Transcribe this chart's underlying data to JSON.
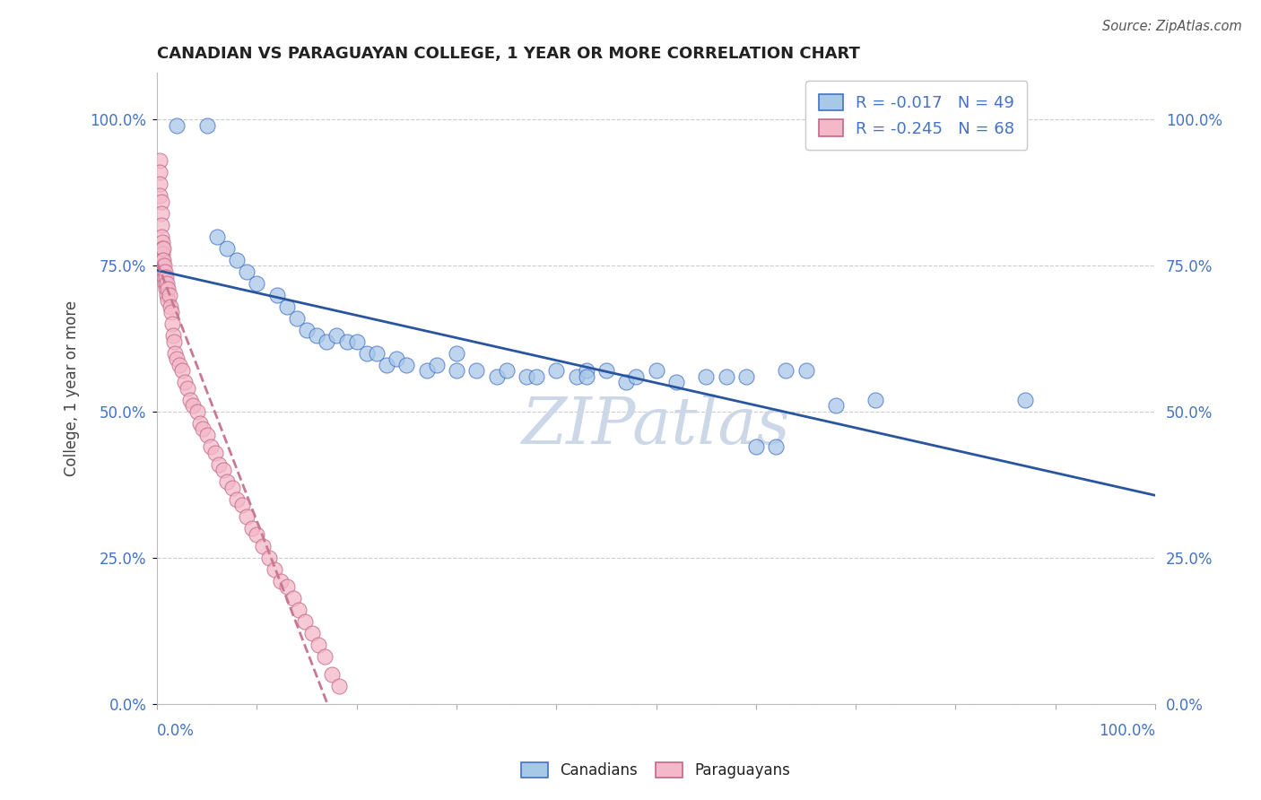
{
  "title": "CANADIAN VS PARAGUAYAN COLLEGE, 1 YEAR OR MORE CORRELATION CHART",
  "source": "Source: ZipAtlas.com",
  "ylabel": "College, 1 year or more",
  "ytick_labels": [
    "0.0%",
    "25.0%",
    "50.0%",
    "75.0%",
    "100.0%"
  ],
  "ytick_values": [
    0.0,
    0.25,
    0.5,
    0.75,
    1.0
  ],
  "xtick_labels": [
    "0.0%",
    "100.0%"
  ],
  "canadian_color": "#a8c8e8",
  "canadian_edge": "#4472c4",
  "paraguayan_color": "#f4b8c8",
  "paraguayan_edge": "#c06888",
  "trend_canadian_color": "#2855a0",
  "trend_paraguayan_color": "#c87890",
  "watermark_color": "#ccd8e8",
  "title_color": "#222222",
  "axis_label_color": "#4472c4",
  "R_canadian": -0.017,
  "R_paraguayan": -0.245,
  "N_canadian": 49,
  "N_paraguayan": 68,
  "canadians_x": [
    0.02,
    0.05,
    0.06,
    0.07,
    0.08,
    0.09,
    0.1,
    0.12,
    0.13,
    0.14,
    0.15,
    0.16,
    0.17,
    0.18,
    0.19,
    0.2,
    0.21,
    0.22,
    0.23,
    0.24,
    0.25,
    0.27,
    0.28,
    0.3,
    0.32,
    0.34,
    0.35,
    0.37,
    0.38,
    0.4,
    0.42,
    0.43,
    0.43,
    0.45,
    0.47,
    0.48,
    0.5,
    0.52,
    0.55,
    0.57,
    0.59,
    0.6,
    0.62,
    0.63,
    0.65,
    0.68,
    0.72,
    0.87,
    0.3
  ],
  "canadians_y": [
    0.99,
    0.99,
    0.8,
    0.78,
    0.76,
    0.74,
    0.72,
    0.7,
    0.68,
    0.66,
    0.64,
    0.63,
    0.62,
    0.63,
    0.62,
    0.62,
    0.6,
    0.6,
    0.58,
    0.59,
    0.58,
    0.57,
    0.58,
    0.6,
    0.57,
    0.56,
    0.57,
    0.56,
    0.56,
    0.57,
    0.56,
    0.57,
    0.56,
    0.57,
    0.55,
    0.56,
    0.57,
    0.55,
    0.56,
    0.56,
    0.56,
    0.44,
    0.44,
    0.57,
    0.57,
    0.51,
    0.52,
    0.52,
    0.57
  ],
  "paraguayans_x": [
    0.003,
    0.003,
    0.003,
    0.003,
    0.004,
    0.004,
    0.004,
    0.004,
    0.005,
    0.005,
    0.005,
    0.005,
    0.005,
    0.006,
    0.006,
    0.006,
    0.007,
    0.007,
    0.008,
    0.008,
    0.009,
    0.009,
    0.01,
    0.01,
    0.011,
    0.011,
    0.012,
    0.013,
    0.014,
    0.015,
    0.016,
    0.017,
    0.018,
    0.02,
    0.022,
    0.025,
    0.028,
    0.03,
    0.033,
    0.036,
    0.04,
    0.043,
    0.046,
    0.05,
    0.054,
    0.058,
    0.062,
    0.066,
    0.07,
    0.075,
    0.08,
    0.085,
    0.09,
    0.095,
    0.1,
    0.106,
    0.112,
    0.118,
    0.124,
    0.13,
    0.136,
    0.142,
    0.148,
    0.155,
    0.162,
    0.168,
    0.175,
    0.182
  ],
  "paraguayans_y": [
    0.93,
    0.91,
    0.89,
    0.87,
    0.86,
    0.84,
    0.82,
    0.8,
    0.79,
    0.78,
    0.77,
    0.76,
    0.75,
    0.78,
    0.76,
    0.74,
    0.75,
    0.73,
    0.74,
    0.72,
    0.73,
    0.71,
    0.72,
    0.7,
    0.71,
    0.69,
    0.7,
    0.68,
    0.67,
    0.65,
    0.63,
    0.62,
    0.6,
    0.59,
    0.58,
    0.57,
    0.55,
    0.54,
    0.52,
    0.51,
    0.5,
    0.48,
    0.47,
    0.46,
    0.44,
    0.43,
    0.41,
    0.4,
    0.38,
    0.37,
    0.35,
    0.34,
    0.32,
    0.3,
    0.29,
    0.27,
    0.25,
    0.23,
    0.21,
    0.2,
    0.18,
    0.16,
    0.14,
    0.12,
    0.1,
    0.08,
    0.05,
    0.03
  ]
}
